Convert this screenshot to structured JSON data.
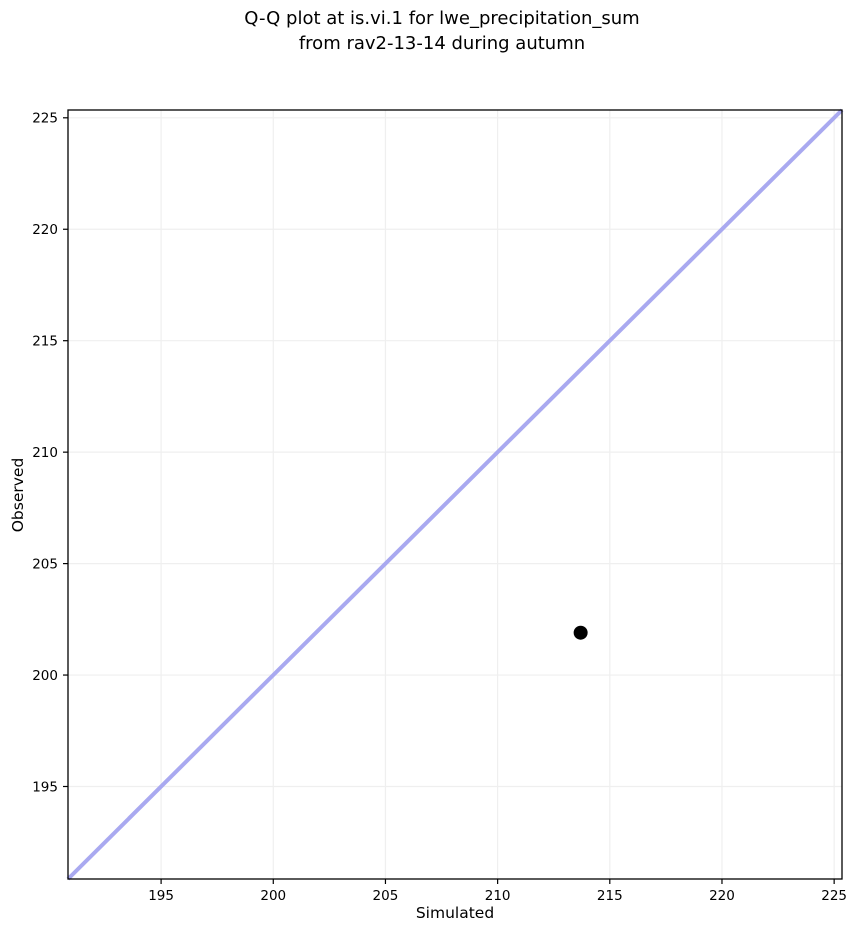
{
  "chart_data": {
    "type": "scatter",
    "title": "Q-Q plot at is.vi.1 for lwe_precipitation_sum\nfrom rav2-13-14 during autumn",
    "xlabel": "Simulated",
    "ylabel": "Observed",
    "xlim": [
      190.85,
      225.35
    ],
    "ylim": [
      190.85,
      225.35
    ],
    "xticks": [
      195,
      200,
      205,
      210,
      215,
      220,
      225
    ],
    "yticks": [
      195,
      200,
      205,
      210,
      215,
      220,
      225
    ],
    "grid": true,
    "legend": false,
    "identity_line": {
      "x1": 190.85,
      "y1": 190.85,
      "x2": 225.35,
      "y2": 225.35,
      "color": "#a9a9f0",
      "width": 4
    },
    "series": [
      {
        "name": "quantile-points",
        "marker": "circle",
        "color": "#000000",
        "marker_radius": 7,
        "points": [
          {
            "x": 213.7,
            "y": 201.9
          }
        ]
      }
    ],
    "colors": {
      "grid": "#efefef",
      "spine": "#000000",
      "tick": "#000000",
      "text": "#000000",
      "background": "#ffffff"
    }
  }
}
